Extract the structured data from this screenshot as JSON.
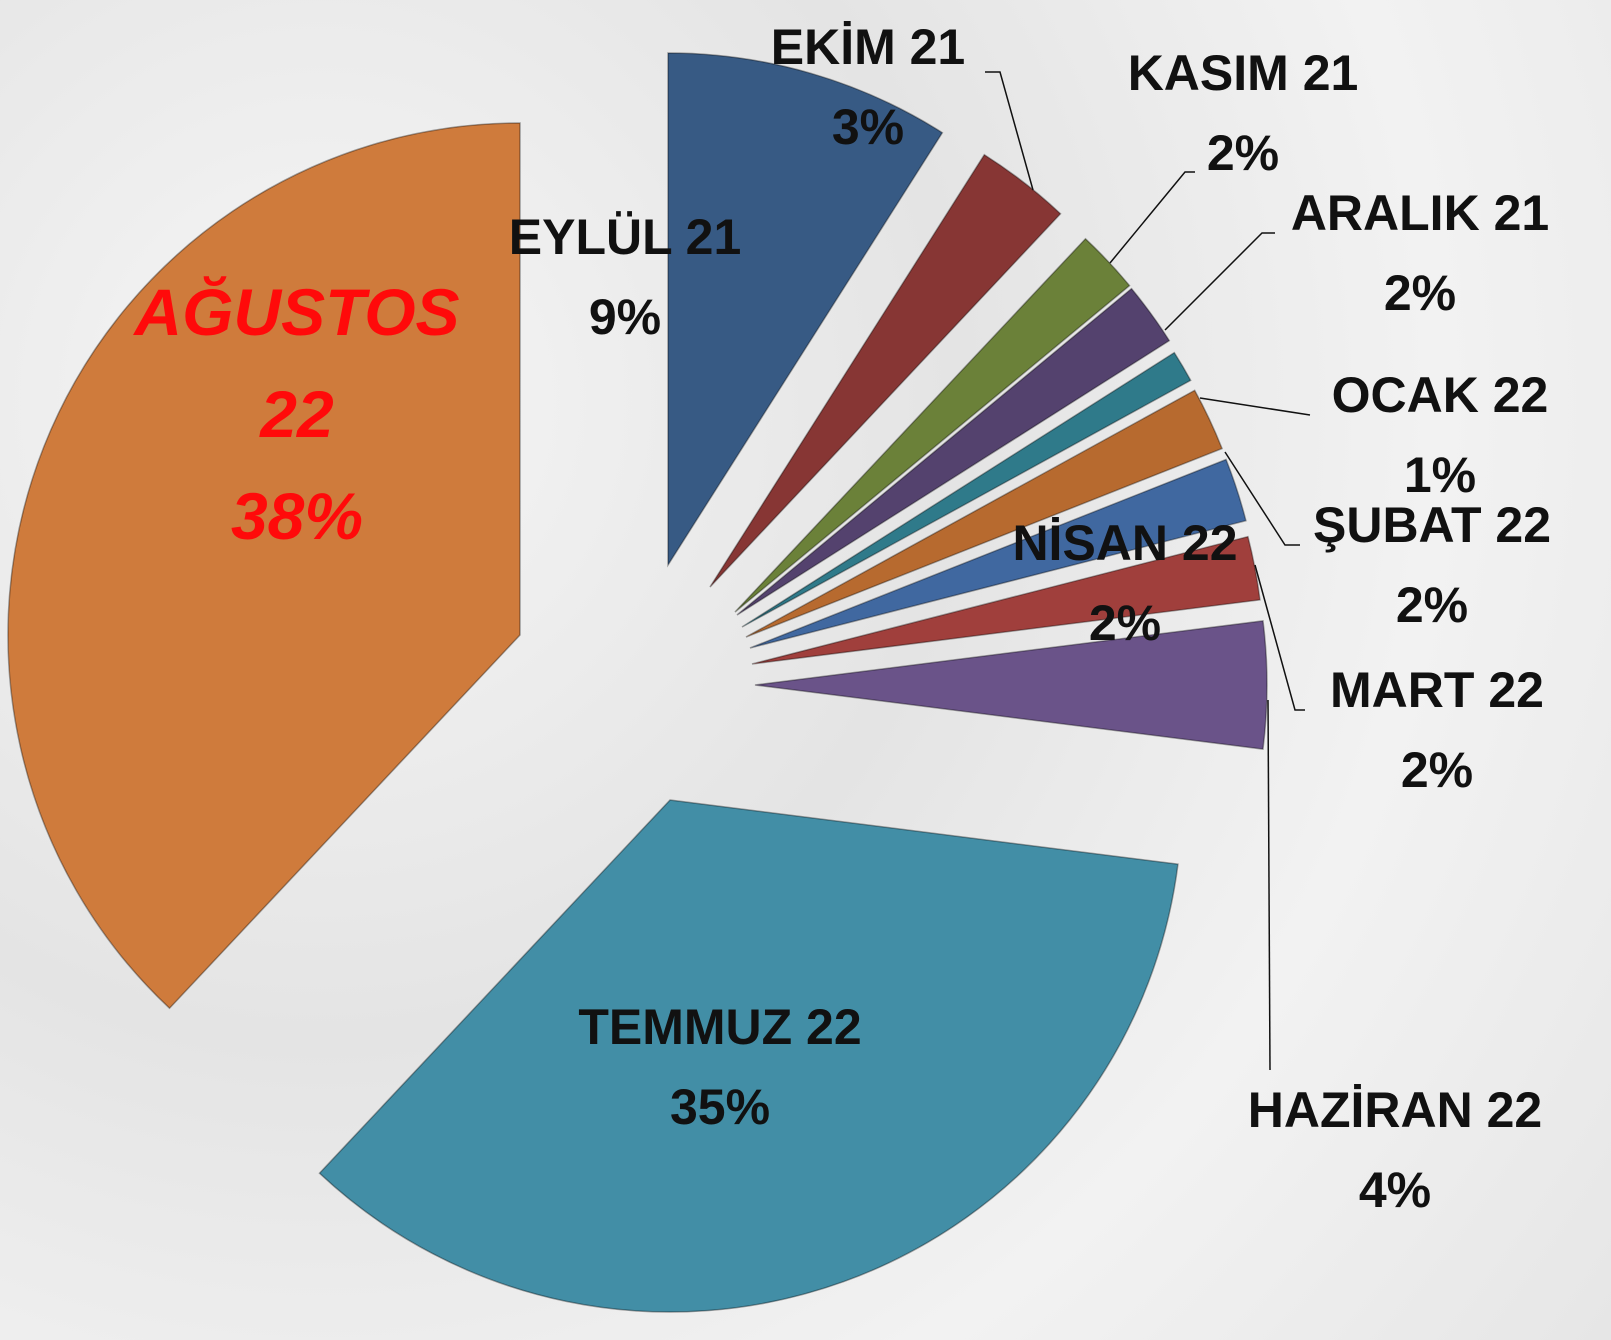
{
  "chart_data": {
    "type": "pie",
    "categories": [
      "EYLÜL 21",
      "EKİM 21",
      "KASIM 21",
      "ARALIK 21",
      "OCAK 22",
      "ŞUBAT 22",
      "MART 22",
      "NİSAN 22",
      "HAZİRAN 22",
      "TEMMUZ 22",
      "AĞUSTOS 22"
    ],
    "values": [
      9,
      3,
      2,
      2,
      1,
      2,
      2,
      2,
      4,
      35,
      38
    ],
    "value_labels": [
      "9%",
      "3%",
      "2%",
      "2%",
      "1%",
      "2%",
      "2%",
      "2%",
      "4%",
      "35%",
      "38%"
    ],
    "colors": [
      "#375a84",
      "#873634",
      "#6b8139",
      "#54426e",
      "#2f7a8a",
      "#b76a2f",
      "#4068a0",
      "#a03f3c",
      "#6a5389",
      "#428ea6",
      "#cf7b3c"
    ]
  }
}
